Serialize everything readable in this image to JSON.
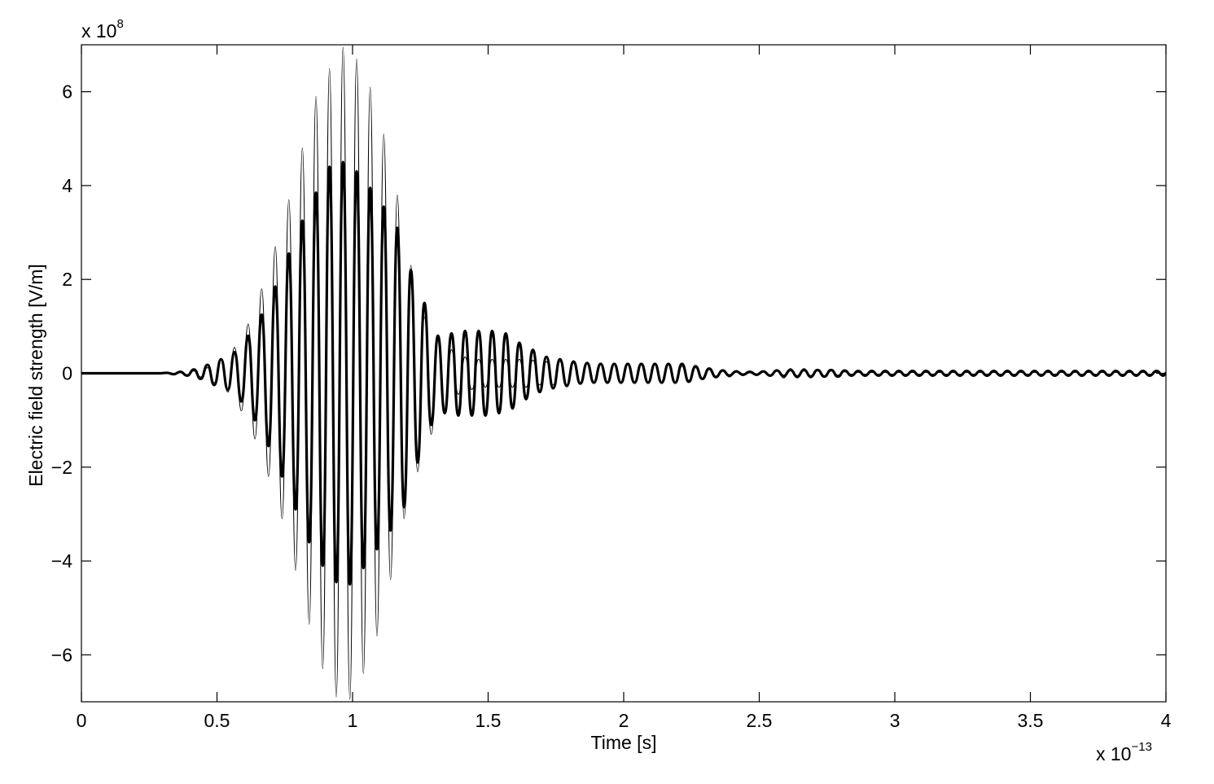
{
  "chart_data": {
    "type": "line",
    "x_label": "Time [s]",
    "y_label": "Electric field strength [V/m]",
    "x_multiplier": {
      "base": "x 10",
      "exponent": "−13"
    },
    "y_multiplier": {
      "base": "x 10",
      "exponent": "8"
    },
    "xlim": [
      0,
      4
    ],
    "ylim": [
      -7,
      7
    ],
    "xticks": [
      0,
      0.5,
      1,
      1.5,
      2,
      2.5,
      3,
      3.5,
      4
    ],
    "yticks": [
      {
        "value": -6,
        "label": "−6"
      },
      {
        "value": -4,
        "label": "−4"
      },
      {
        "value": -2,
        "label": "−2"
      },
      0,
      2,
      4,
      6
    ],
    "grid": false,
    "x": [
      0,
      0.29,
      0.315,
      0.34,
      0.365,
      0.39,
      0.415,
      0.44,
      0.465,
      0.49,
      0.515,
      0.54,
      0.565,
      0.59,
      0.615,
      0.64,
      0.665,
      0.69,
      0.715,
      0.74,
      0.765,
      0.79,
      0.815,
      0.84,
      0.865,
      0.89,
      0.915,
      0.94,
      0.965,
      0.99,
      1.015,
      1.04,
      1.065,
      1.09,
      1.115,
      1.14,
      1.165,
      1.19,
      1.215,
      1.24,
      1.265,
      1.29,
      1.315,
      1.34,
      1.365,
      1.39,
      1.415,
      1.44,
      1.465,
      1.49,
      1.515,
      1.54,
      1.565,
      1.59,
      1.615,
      1.64,
      1.665,
      1.69,
      1.715,
      1.74,
      1.765,
      1.79,
      1.815,
      1.84,
      1.865,
      1.89,
      1.915,
      1.94,
      1.965,
      1.99,
      2.015,
      2.04,
      2.065,
      2.09,
      2.115,
      2.14,
      2.165,
      2.19,
      2.215,
      2.24,
      2.265,
      2.29,
      2.315,
      2.34,
      2.365,
      2.39,
      2.415,
      2.44,
      2.465,
      2.49,
      2.515,
      2.54,
      2.565,
      2.59,
      2.615,
      2.64,
      2.665,
      2.69,
      2.715,
      2.74,
      2.765,
      2.79,
      2.815,
      2.84,
      2.865,
      2.89,
      2.915,
      2.94,
      2.965,
      2.99,
      3.015,
      3.04,
      3.065,
      3.09,
      3.115,
      3.14,
      3.165,
      3.19,
      3.215,
      3.24,
      3.265,
      3.29,
      3.315,
      3.34,
      3.365,
      3.39,
      3.415,
      3.44,
      3.465,
      3.49,
      3.515,
      3.54,
      3.565,
      3.59,
      3.615,
      3.64,
      3.665,
      3.69,
      3.715,
      3.74,
      3.765,
      3.79,
      3.815,
      3.84,
      3.865,
      3.89,
      3.915,
      3.94,
      3.965,
      3.99,
      4
    ],
    "series": [
      {
        "color": "#000000",
        "line_width": 1,
        "values": [
          0,
          0,
          0.01,
          -0.01,
          0.02,
          -0.03,
          0.05,
          -0.08,
          0.12,
          -0.2,
          0.3,
          -0.4,
          0.55,
          -0.8,
          1.05,
          -1.4,
          1.8,
          -2.2,
          2.7,
          -3.1,
          3.7,
          -4.2,
          4.8,
          -5.35,
          5.9,
          -6.3,
          6.5,
          -6.9,
          6.95,
          -6.95,
          6.7,
          -6.4,
          6.1,
          -5.6,
          5.1,
          -4.4,
          3.8,
          -3.1,
          2.3,
          -2.1,
          1.2,
          -1.3,
          0.8,
          -0.8,
          0.5,
          -0.45,
          0.35,
          -0.35,
          0.3,
          -0.3,
          0.3,
          -0.3,
          0.3,
          -0.3,
          0.3,
          -0.3,
          0.28,
          -0.25,
          0.25,
          -0.25,
          0.25,
          -0.25,
          0.22,
          -0.22,
          0.2,
          -0.2,
          0.2,
          -0.2,
          0.2,
          -0.2,
          0.2,
          -0.2,
          0.2,
          -0.2,
          0.2,
          -0.2,
          0.18,
          -0.18,
          0.15,
          -0.15,
          0.12,
          -0.12,
          0.1,
          -0.1,
          0.08,
          -0.08,
          0.06,
          -0.05,
          0.05,
          -0.05,
          0.05,
          -0.07,
          0.08,
          -0.1,
          0.1,
          -0.1,
          0.1,
          -0.1,
          0.08,
          -0.06,
          0.05,
          -0.04,
          0.03,
          -0.02,
          0.02,
          -0.02,
          0.02,
          -0.02,
          0.02,
          -0.02,
          0.02,
          -0.02,
          0.02,
          -0.02,
          0.02,
          -0.02,
          0.02,
          -0.02,
          0.02,
          -0.02,
          0.02,
          -0.02,
          0.02,
          -0.02,
          0.02,
          -0.02,
          0.02,
          -0.02,
          0.02,
          -0.02,
          0.02,
          -0.02,
          0.02,
          -0.02,
          0.02,
          -0.02,
          0.02,
          -0.02,
          0.02,
          -0.02,
          0.02,
          -0.02,
          0.02,
          -0.02,
          0.02,
          -0.02,
          0.02,
          -0.02,
          0.02,
          -0.02,
          0
        ]
      },
      {
        "color": "#000000",
        "line_width": 3.2,
        "values": [
          0,
          0,
          0.01,
          -0.02,
          0.03,
          -0.05,
          0.08,
          -0.12,
          0.18,
          -0.25,
          0.3,
          -0.35,
          0.45,
          -0.6,
          0.8,
          -1.0,
          1.25,
          -1.55,
          1.85,
          -2.2,
          2.55,
          -2.9,
          3.25,
          -3.6,
          3.85,
          -4.1,
          4.4,
          -4.45,
          4.5,
          -4.5,
          4.3,
          -4.15,
          3.95,
          -3.75,
          3.55,
          -3.35,
          3.1,
          -2.85,
          2.2,
          -1.9,
          1.5,
          -1.1,
          0.8,
          -0.85,
          0.85,
          -0.9,
          0.9,
          -0.9,
          0.9,
          -0.9,
          0.9,
          -0.85,
          0.85,
          -0.75,
          0.65,
          -0.55,
          0.5,
          -0.4,
          0.35,
          -0.32,
          0.3,
          -0.27,
          0.25,
          -0.22,
          0.22,
          -0.2,
          0.2,
          -0.2,
          0.2,
          -0.2,
          0.2,
          -0.2,
          0.2,
          -0.2,
          0.2,
          -0.2,
          0.2,
          -0.2,
          0.2,
          -0.18,
          0.15,
          -0.12,
          0.1,
          -0.08,
          0.06,
          -0.05,
          0.04,
          -0.03,
          0.03,
          -0.03,
          0.04,
          -0.05,
          0.06,
          -0.06,
          0.07,
          -0.07,
          0.07,
          -0.07,
          0.07,
          -0.07,
          0.07,
          -0.07,
          0.06,
          -0.05,
          0.05,
          -0.05,
          0.05,
          -0.05,
          0.05,
          -0.05,
          0.05,
          -0.05,
          0.05,
          -0.05,
          0.05,
          -0.05,
          0.05,
          -0.05,
          0.05,
          -0.05,
          0.05,
          -0.05,
          0.05,
          -0.05,
          0.05,
          -0.05,
          0.05,
          -0.05,
          0.05,
          -0.05,
          0.05,
          -0.05,
          0.05,
          -0.05,
          0.05,
          -0.05,
          0.05,
          -0.05,
          0.05,
          -0.05,
          0.05,
          -0.05,
          0.05,
          -0.05,
          0.05,
          -0.05,
          0.05,
          -0.05,
          0.05,
          -0.05,
          0
        ]
      }
    ]
  }
}
